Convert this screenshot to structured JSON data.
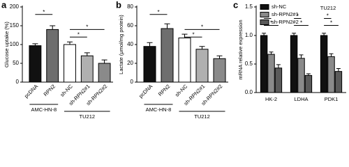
{
  "chart_data": [
    {
      "type": "bar",
      "panel": "a",
      "ylabel": "Glucose uptake (%)",
      "categories": [
        "pcDNA",
        "RPN2",
        "sh-NC",
        "sh-RPN2#1",
        "sh-RPN2#2"
      ],
      "values": [
        97,
        140,
        100,
        70,
        50
      ],
      "errors": [
        5,
        10,
        7,
        8,
        9
      ],
      "colors": [
        "#111111",
        "#6e6e6e",
        "#ffffff",
        "#b0b0b0",
        "#8a8a8a"
      ],
      "ylim": [
        0,
        200
      ],
      "yticks": [
        0,
        50,
        100,
        150,
        200
      ],
      "groups": [
        "AMC-HN-8",
        "TU212"
      ],
      "significance": [
        "*",
        "*",
        "*"
      ]
    },
    {
      "type": "bar",
      "panel": "b",
      "ylabel": "Lactate (μmol/mg protein)",
      "categories": [
        "pcDNA",
        "RPN2",
        "sh-NC",
        "sh-RPN2#1",
        "sh-RPN2#2"
      ],
      "values": [
        38,
        57,
        47,
        35,
        25
      ],
      "errors": [
        4,
        5,
        4,
        3,
        3
      ],
      "colors": [
        "#111111",
        "#6e6e6e",
        "#ffffff",
        "#b0b0b0",
        "#8a8a8a"
      ],
      "ylim": [
        0,
        80
      ],
      "yticks": [
        0,
        20,
        40,
        60,
        80
      ],
      "groups": [
        "AMC-HN-8",
        "TU212"
      ],
      "significance": [
        "*",
        "*",
        "*"
      ]
    },
    {
      "type": "grouped_bar",
      "panel": "c",
      "title": "TU212",
      "ylabel": "mRNA relative expression",
      "categories": [
        "HK-2",
        "LDHA",
        "PDK1"
      ],
      "series": [
        {
          "name": "sh-NC",
          "color": "#111111",
          "values": [
            1.0,
            1.0,
            1.0
          ],
          "errors": [
            0.04,
            0.04,
            0.04
          ]
        },
        {
          "name": "sh-RPN2#1",
          "color": "#8a8a8a",
          "values": [
            0.67,
            0.6,
            0.63
          ],
          "errors": [
            0.04,
            0.06,
            0.05
          ]
        },
        {
          "name": "sh-RPN2#2",
          "color": "#5a5a5a",
          "values": [
            0.43,
            0.3,
            0.37
          ],
          "errors": [
            0.06,
            0.03,
            0.05
          ]
        }
      ],
      "ylim": [
        0,
        1.5
      ],
      "yticks": [
        {
          "value": 0,
          "label": "0.0"
        },
        {
          "value": 0.5,
          "label": "0.5"
        },
        {
          "value": 1,
          "label": "1.0"
        },
        {
          "value": 1.5,
          "label": "1.5"
        }
      ],
      "significance": [
        "*",
        "*",
        "*",
        "*",
        "*",
        "*"
      ]
    }
  ]
}
